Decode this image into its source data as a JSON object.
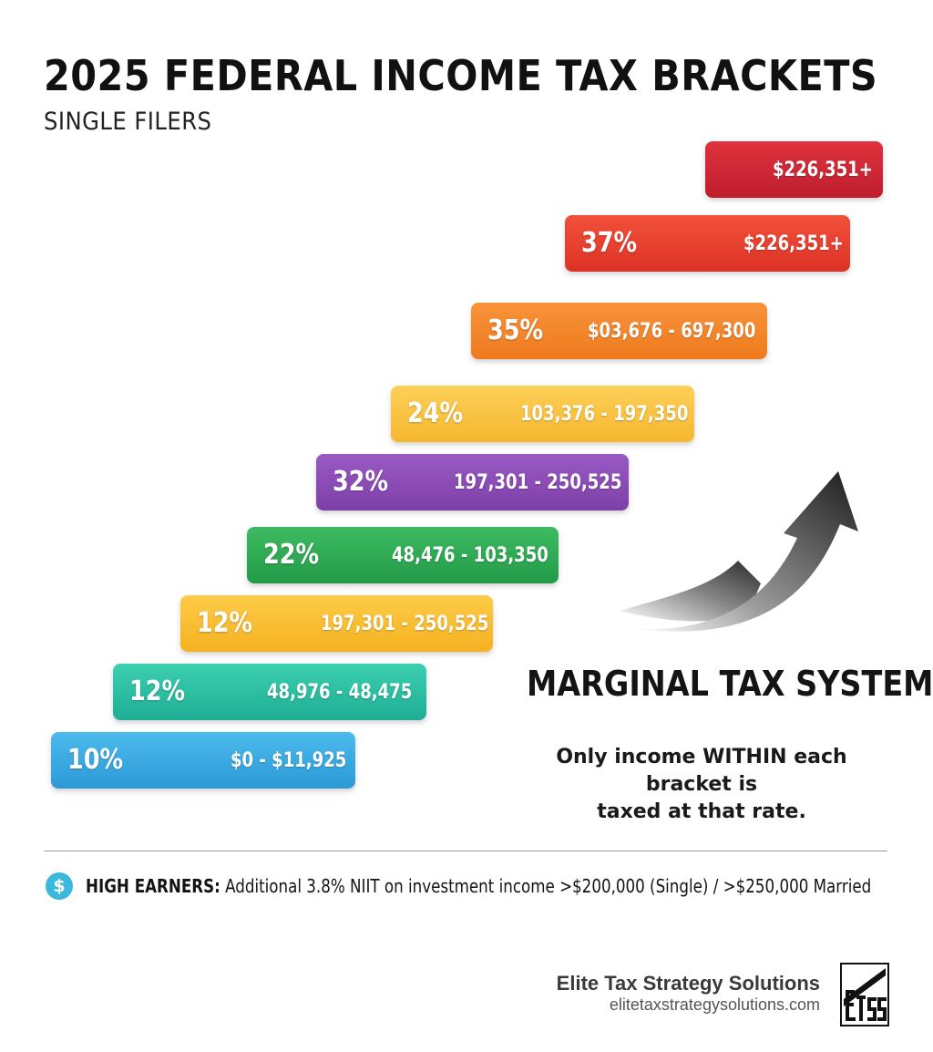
{
  "header": {
    "title": "2025 FEDERAL INCOME TAX BRACKETS",
    "subtitle": "SINGLE FILERS"
  },
  "brackets": [
    {
      "rate": "",
      "range": "$226,351+",
      "color_from": "#e0323f",
      "color_to": "#be1e2d"
    },
    {
      "rate": "37%",
      "range": "$226,351+",
      "color_from": "#f2503a",
      "color_to": "#dc3226"
    },
    {
      "rate": "35%",
      "range": "$03,676 - 697,300",
      "color_from": "#f8933a",
      "color_to": "#ef7a1e"
    },
    {
      "rate": "24%",
      "range": "103,376 - 197,350",
      "color_from": "#fdd058",
      "color_to": "#f5b730"
    },
    {
      "rate": "32%",
      "range": "197,301 - 250,525",
      "color_from": "#9a5ac4",
      "color_to": "#7d3fa8"
    },
    {
      "rate": "22%",
      "range": "48,476 - 103,350",
      "color_from": "#3dbb62",
      "color_to": "#239a48"
    },
    {
      "rate": "12%",
      "range": "197,301 - 250,525",
      "color_from": "#fdcc48",
      "color_to": "#f5b120"
    },
    {
      "rate": "12%",
      "range": "48,976 - 48,475",
      "color_from": "#3ccfb0",
      "color_to": "#1fae94"
    },
    {
      "rate": "10%",
      "range": "$0 - $11,925",
      "color_from": "#4dbbec",
      "color_to": "#2b99d6"
    }
  ],
  "marginal": {
    "heading": "MARGINAL TAX SYSTEM",
    "note_line1": "Only income WITHIN each bracket is",
    "note_line2": "taxed at that rate."
  },
  "footer_note": {
    "icon": "dollar-icon",
    "lead": "HIGH EARNERS:",
    "text": " Additional 3.8% NIIT on investment income >$200,000 (Single) / >$250,000 Married"
  },
  "brand": {
    "name": "Elite Tax Strategy Solutions",
    "url": "elitetaxstrategysolutions.com",
    "logo_icon": "etss-logo-icon"
  }
}
